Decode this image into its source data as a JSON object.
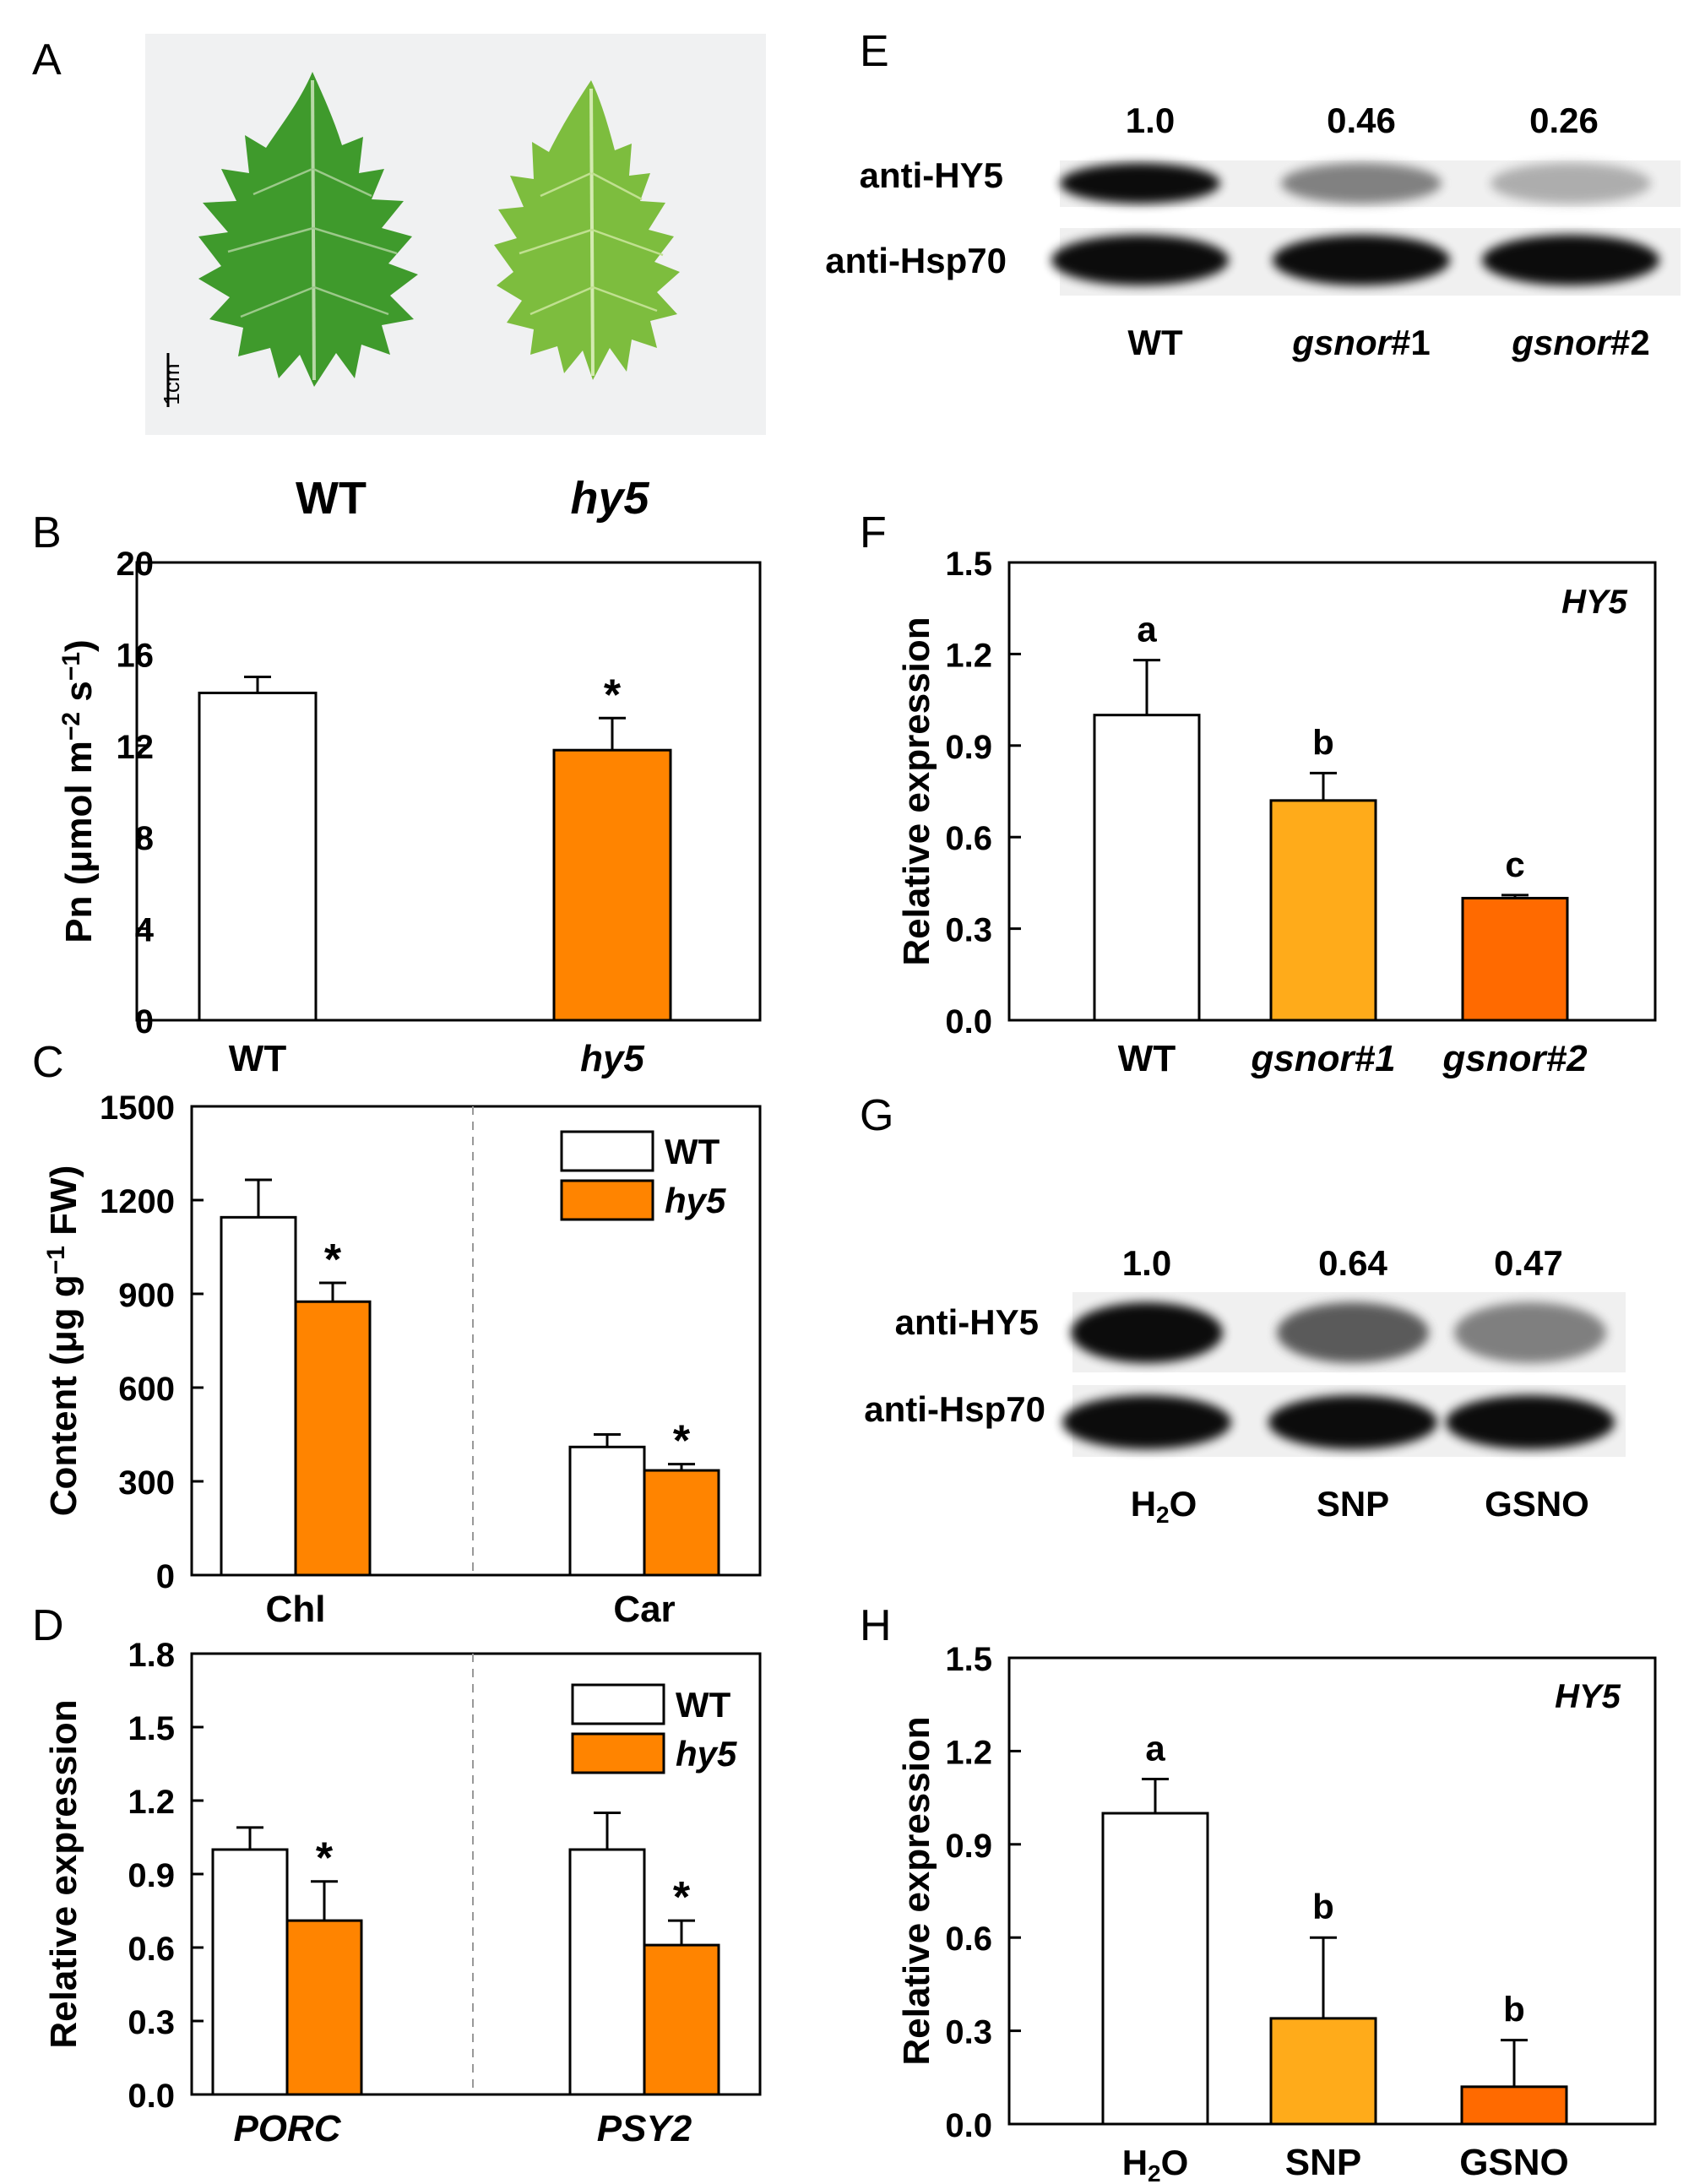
{
  "panel_labels": {
    "A": "A",
    "B": "B",
    "C": "C",
    "D": "D",
    "E": "E",
    "F": "F",
    "G": "G",
    "H": "H"
  },
  "colors": {
    "wt": "#ffffff",
    "hy5": "#ff8400",
    "light_orange": "#ffab1a",
    "dark_orange": "#ff6a00",
    "edge": "#000000",
    "leaf": "#3f9a2c"
  },
  "panelA": {
    "scale_bar": "1cm",
    "labels": [
      "WT",
      "hy5"
    ]
  },
  "panelE": {
    "quant": [
      "1.0",
      "0.46",
      "0.26"
    ],
    "rows": [
      "anti-HY5",
      "anti-Hsp70"
    ],
    "lanes": [
      {
        "main": "WT",
        "suffix": ""
      },
      {
        "main": "gsnor",
        "suffix": "#1"
      },
      {
        "main": "gsnor",
        "suffix": "#2"
      }
    ],
    "hy5_intensity": [
      1.0,
      0.46,
      0.26
    ],
    "hsp70_intensity": [
      1.0,
      1.0,
      1.0
    ]
  },
  "panelG": {
    "quant": [
      "1.0",
      "0.64",
      "0.47"
    ],
    "rows": [
      "anti-HY5",
      "anti-Hsp70"
    ],
    "lanes": [
      {
        "pre": "H",
        "sub": "2",
        "post": "O"
      },
      {
        "pre": "SNP",
        "sub": "",
        "post": ""
      },
      {
        "pre": "GSNO",
        "sub": "",
        "post": ""
      }
    ],
    "hy5_intensity": [
      1.0,
      0.64,
      0.47
    ],
    "hsp70_intensity": [
      1.0,
      1.0,
      1.0
    ]
  },
  "chart_data": [
    {
      "id": "B",
      "type": "bar",
      "ylabel": "Pn (μmol m⁻² s⁻¹)",
      "ylim": [
        0,
        20
      ],
      "yticks": [
        "0",
        "4",
        "8",
        "12",
        "16",
        "20"
      ],
      "categories": [
        "WT",
        "hy5"
      ],
      "values": [
        14.3,
        11.8
      ],
      "errors": [
        0.7,
        1.4
      ],
      "annotations": [
        "",
        "*"
      ]
    },
    {
      "id": "C",
      "type": "bar",
      "ylabel": "Content (μg g⁻¹ FW)",
      "ylim": [
        0,
        1500
      ],
      "yticks": [
        "0",
        "300",
        "600",
        "900",
        "1200",
        "1500"
      ],
      "categories": [
        "Chl",
        "Car"
      ],
      "legend": [
        "WT",
        "hy5"
      ],
      "legend_position": "top-right",
      "series": [
        {
          "name": "WT",
          "values": [
            1145,
            410
          ],
          "errors": [
            120,
            40
          ]
        },
        {
          "name": "hy5",
          "values": [
            875,
            335
          ],
          "errors": [
            60,
            20
          ]
        }
      ],
      "annotations": [
        "*",
        "*"
      ]
    },
    {
      "id": "D",
      "type": "bar",
      "ylabel": "Relative expression",
      "ylim": [
        0,
        1.8
      ],
      "yticks": [
        "0.0",
        "0.3",
        "0.6",
        "0.9",
        "1.2",
        "1.5",
        "1.8"
      ],
      "categories": [
        "PORC",
        "PSY2"
      ],
      "legend": [
        "WT",
        "hy5"
      ],
      "legend_position": "top-right",
      "series": [
        {
          "name": "WT",
          "values": [
            1.0,
            1.0
          ],
          "errors": [
            0.09,
            0.15
          ]
        },
        {
          "name": "hy5",
          "values": [
            0.71,
            0.61
          ],
          "errors": [
            0.16,
            0.1
          ]
        }
      ],
      "annotations": [
        "*",
        "*"
      ]
    },
    {
      "id": "F",
      "type": "bar",
      "title": "HY5",
      "ylabel": "Relative expression",
      "ylim": [
        0,
        1.5
      ],
      "yticks": [
        "0.0",
        "0.3",
        "0.6",
        "0.9",
        "1.2",
        "1.5"
      ],
      "categories": [
        "WT",
        "gsnor#1",
        "gsnor#2"
      ],
      "values": [
        1.0,
        0.72,
        0.4
      ],
      "errors": [
        0.18,
        0.09,
        0.01
      ],
      "annotations": [
        "a",
        "b",
        "c"
      ]
    },
    {
      "id": "H",
      "type": "bar",
      "title": "HY5",
      "ylabel": "Relative expression",
      "ylim": [
        0,
        1.5
      ],
      "yticks": [
        "0.0",
        "0.3",
        "0.6",
        "0.9",
        "1.2",
        "1.5"
      ],
      "categories": [
        "H2O",
        "SNP",
        "GSNO"
      ],
      "values": [
        1.0,
        0.34,
        0.12
      ],
      "errors": [
        0.11,
        0.26,
        0.15
      ],
      "annotations": [
        "a",
        "b",
        "b"
      ]
    }
  ]
}
